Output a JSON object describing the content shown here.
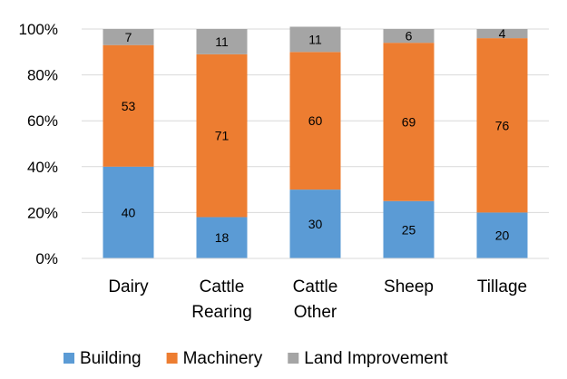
{
  "chart_data": {
    "type": "bar",
    "stacked": true,
    "categories": [
      [
        "Dairy"
      ],
      [
        "Cattle",
        "Rearing"
      ],
      [
        "Cattle",
        "Other"
      ],
      [
        "Sheep"
      ],
      [
        "Tillage"
      ]
    ],
    "series": [
      {
        "name": "Building",
        "color": "#5b9bd5",
        "values": [
          40,
          18,
          30,
          25,
          20
        ]
      },
      {
        "name": "Machinery",
        "color": "#ed7d31",
        "values": [
          53,
          71,
          60,
          69,
          76
        ]
      },
      {
        "name": "Land Improvement",
        "color": "#a5a5a5",
        "values": [
          7,
          11,
          11,
          6,
          4
        ]
      }
    ],
    "yticks": [
      "0%",
      "20%",
      "40%",
      "60%",
      "80%",
      "100%"
    ],
    "ylim": [
      0,
      100
    ],
    "grid": true,
    "legend_position": "bottom"
  }
}
